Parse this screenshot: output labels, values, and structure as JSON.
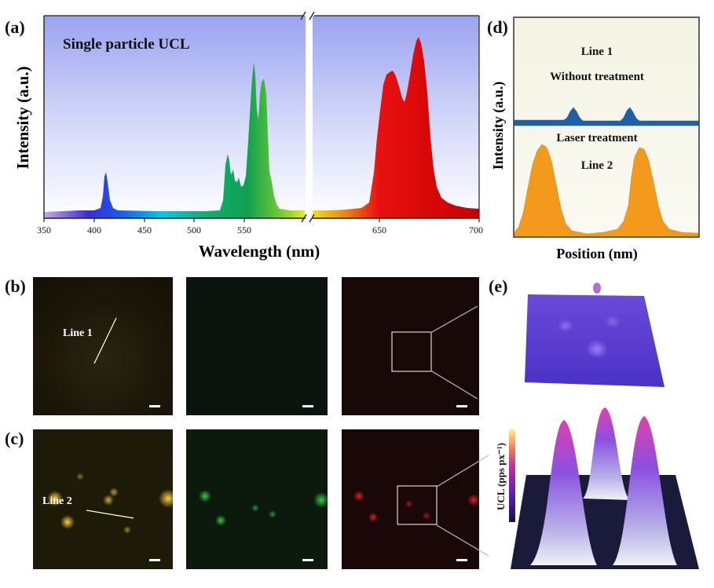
{
  "panels": {
    "a": {
      "label": "(a)",
      "annotation": "Single particle UCL",
      "chart_data": {
        "type": "area",
        "title": "",
        "xlabel": "Wavelength (nm)",
        "ylabel": "Intensity (a.u.)",
        "xlim": [
          350,
          700
        ],
        "axis_break": [
          590,
          610
        ],
        "x_ticks_left": [
          "350",
          "400",
          "450",
          "500",
          "550"
        ],
        "x_ticks_right": [
          "650",
          "700"
        ],
        "peaks_nm": [
          {
            "x": 408,
            "y": 0.22
          },
          {
            "x": 521,
            "y": 0.33
          },
          {
            "x": 530,
            "y": 0.25
          },
          {
            "x": 546,
            "y": 0.8
          },
          {
            "x": 553,
            "y": 0.71
          },
          {
            "x": 655,
            "y": 0.8
          },
          {
            "x": 669,
            "y": 0.96
          }
        ]
      }
    },
    "b": {
      "label": "(b)",
      "line_label": "Line 1"
    },
    "c": {
      "label": "(c)",
      "line_label": "Line 2"
    },
    "d": {
      "label": "(d)",
      "ylabel": "Intensity (a.u.)",
      "xlabel": "Position (nm)",
      "line1_title": "Line 1",
      "line1_subtitle": "Without treatment",
      "line2_title": "Laser treatment",
      "line2_subtitle": "Line 2",
      "colors": {
        "line1": "#1f5fa8",
        "line2": "#f39a1c"
      }
    },
    "e": {
      "label": "(e)",
      "colorbar_label": "UCL (pps px⁻¹)"
    }
  }
}
